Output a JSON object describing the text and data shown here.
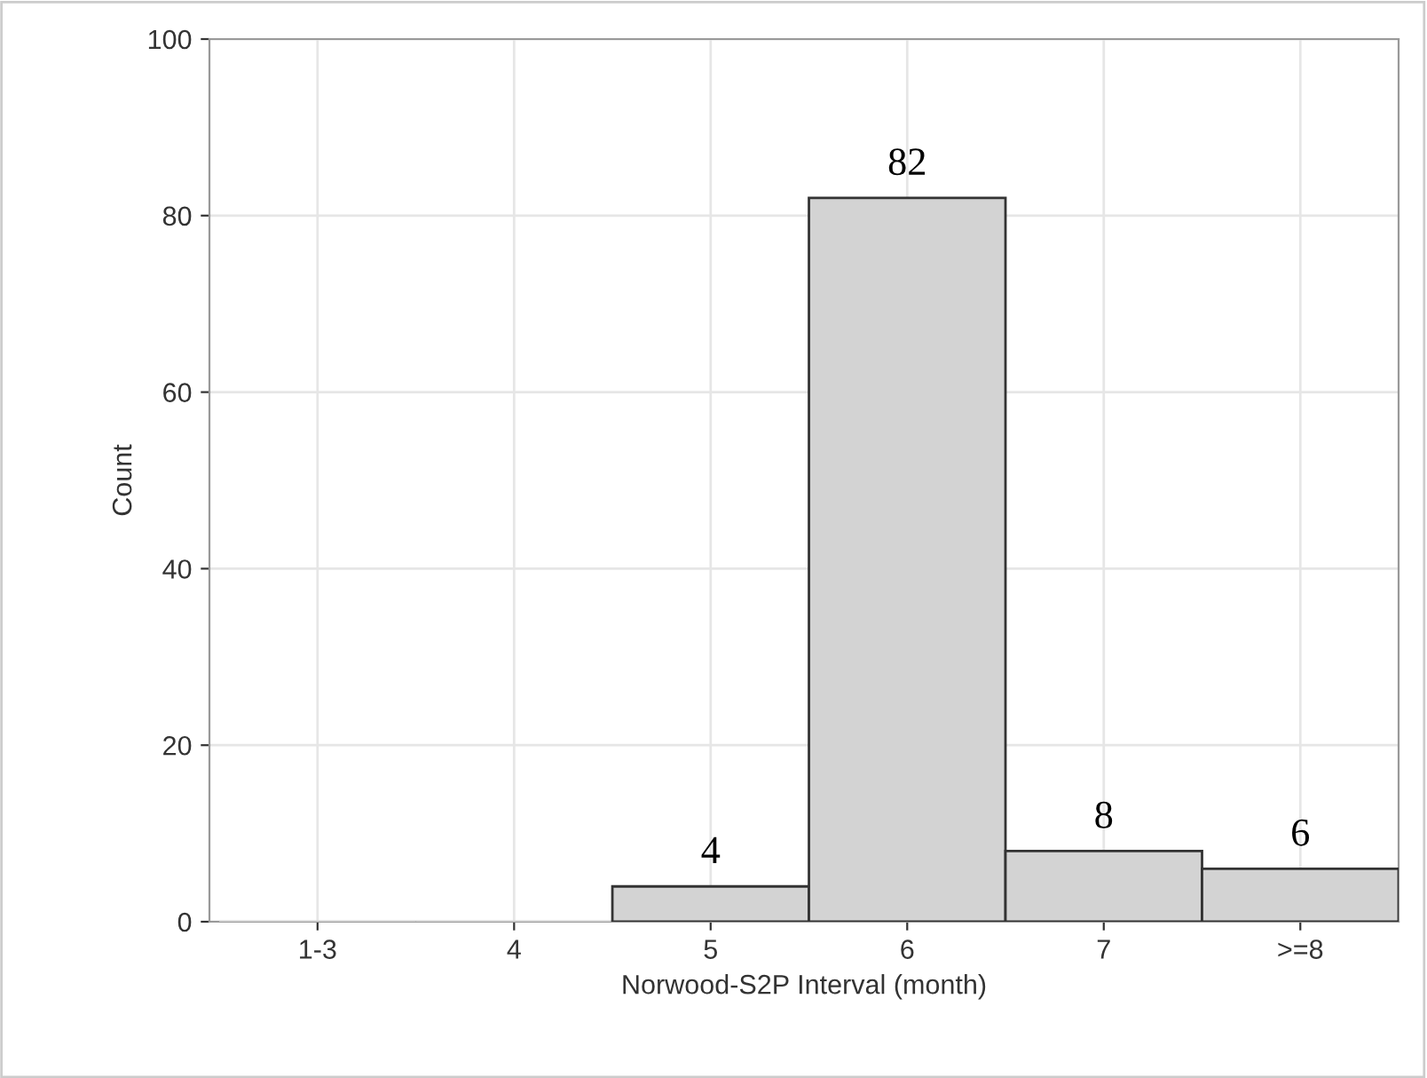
{
  "chart_data": {
    "type": "bar",
    "xlabel": "Norwood-S2P Interval (month)",
    "ylabel": "Count",
    "categories": [
      "1-3",
      "4",
      "5",
      "6",
      "7",
      ">=8"
    ],
    "values": [
      0,
      0,
      4,
      82,
      8,
      6
    ],
    "value_labels": [
      null,
      null,
      "4",
      "82",
      "8",
      "6"
    ],
    "color": "#d3d3d3",
    "ylim": [
      0,
      100
    ],
    "yticks": [
      0,
      20,
      40,
      60,
      80,
      100
    ],
    "grid": true
  }
}
